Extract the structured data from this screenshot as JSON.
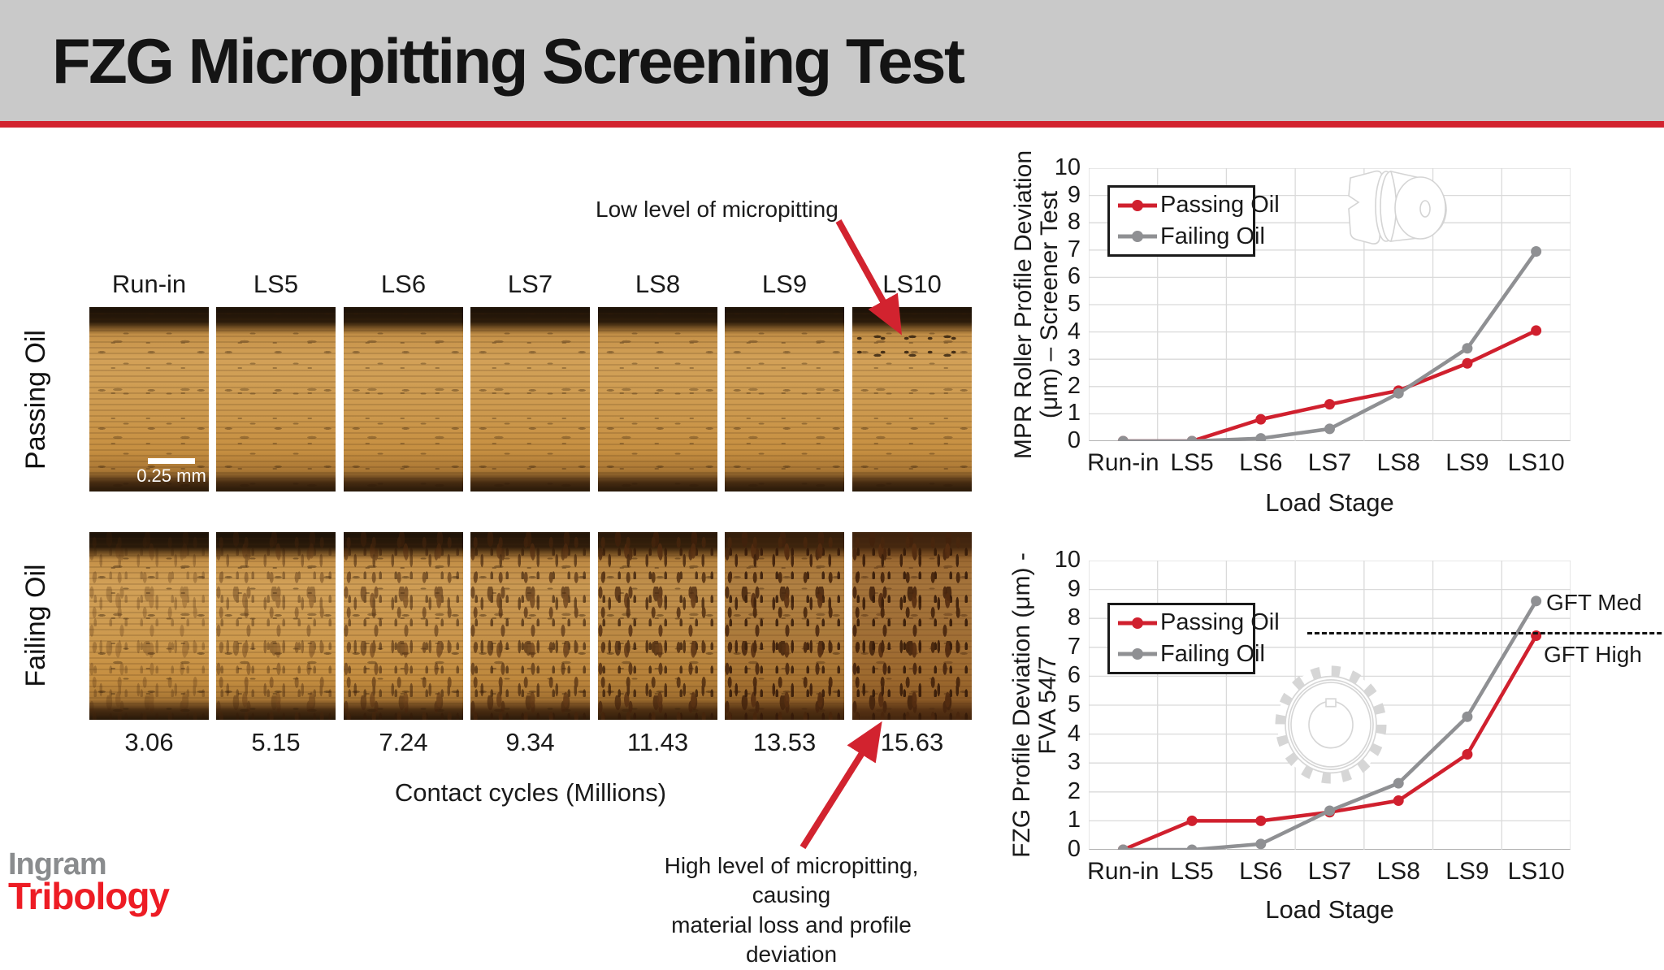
{
  "slide": {
    "title": "FZG Micropitting Screening Test",
    "accent_red": "#d2232f",
    "header_gray": "#c9c9c9"
  },
  "logo": {
    "line1": "Ingram",
    "line2": "Tribology",
    "gray": "#8a8c8e",
    "red": "#ed1c24"
  },
  "micrographs": {
    "row_labels": {
      "passing": "Passing Oil",
      "failing": "Failing Oil"
    },
    "stage_labels": [
      "Run-in",
      "LS5",
      "LS6",
      "LS7",
      "LS8",
      "LS9",
      "LS10"
    ],
    "contact_cycles": [
      "3.06",
      "5.15",
      "7.24",
      "9.34",
      "11.43",
      "13.53",
      "15.63"
    ],
    "cycles_axis_label": "Contact cycles (Millions)",
    "scale_bar": "0.25 mm"
  },
  "annotations": {
    "low": "Low level of micropitting",
    "high_line1": "High level of micropitting, causing",
    "high_line2": "material loss and profile deviation"
  },
  "chart_data": [
    {
      "type": "line",
      "categories": [
        "Run-in",
        "LS5",
        "LS6",
        "LS7",
        "LS8",
        "LS9",
        "LS10"
      ],
      "series": [
        {
          "name": "Passing Oil",
          "color": "#d0202e",
          "values": [
            0,
            0,
            0.8,
            1.35,
            1.85,
            2.85,
            4.05
          ]
        },
        {
          "name": "Failing Oil",
          "color": "#8f9093",
          "values": [
            0,
            0,
            0.1,
            0.45,
            1.75,
            3.4,
            6.95
          ]
        }
      ],
      "title": "",
      "xlabel": "Load Stage",
      "ylabel": "MPR Roller Profile Deviation (μm) – Screener Test",
      "ylabel_line1": "MPR Roller Profile Deviation",
      "ylabel_line2": "(μm) – Screener Test",
      "ylim": [
        0,
        10
      ],
      "ytick_step": 1,
      "grid": true,
      "legend_position": "top-left",
      "icon": "mpr-roller-icon"
    },
    {
      "type": "line",
      "categories": [
        "Run-in",
        "LS5",
        "LS6",
        "LS7",
        "LS8",
        "LS9",
        "LS10"
      ],
      "series": [
        {
          "name": "Passing Oil",
          "color": "#d0202e",
          "values": [
            0,
            1.0,
            1.0,
            1.3,
            1.7,
            3.3,
            7.4
          ]
        },
        {
          "name": "Failing Oil",
          "color": "#8f9093",
          "values": [
            0,
            0,
            0.2,
            1.35,
            2.3,
            4.6,
            8.6
          ]
        }
      ],
      "title": "",
      "xlabel": "Load Stage",
      "ylabel": "FZG Profile Deviation (μm) - FVA 54/7",
      "ylabel_line1": "FZG Profile Deviation (μm) -",
      "ylabel_line2": "FVA 54/7",
      "ylim": [
        0,
        10
      ],
      "ytick_step": 1,
      "grid": true,
      "legend_position": "top-left",
      "ref_line": {
        "value": 7.5,
        "style": "dashed",
        "label_above": "GFT Med",
        "label_below": "GFT High"
      },
      "icon": "fzg-gear-icon"
    }
  ]
}
